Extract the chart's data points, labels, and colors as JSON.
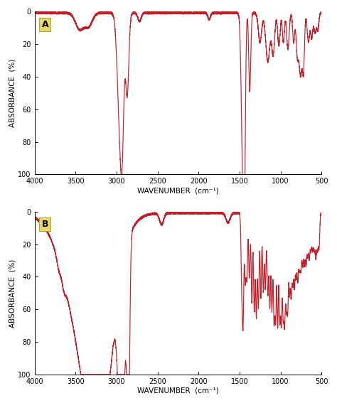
{
  "line_color": "#c0202a",
  "background_color": "#ffffff",
  "label_color": "#000000",
  "box_color": "#e8d870",
  "xlabel": "WAVENUMBER  (cm⁻¹)",
  "ylabel": "ABSORBANCE  (%)",
  "xlim": [
    4000,
    500
  ],
  "ylim": [
    100,
    0
  ],
  "yticks": [
    0,
    20,
    40,
    60,
    80,
    100
  ],
  "xticks": [
    4000,
    3500,
    3000,
    2500,
    2000,
    1500,
    1000,
    500
  ],
  "panel_labels": [
    "A",
    "B"
  ]
}
